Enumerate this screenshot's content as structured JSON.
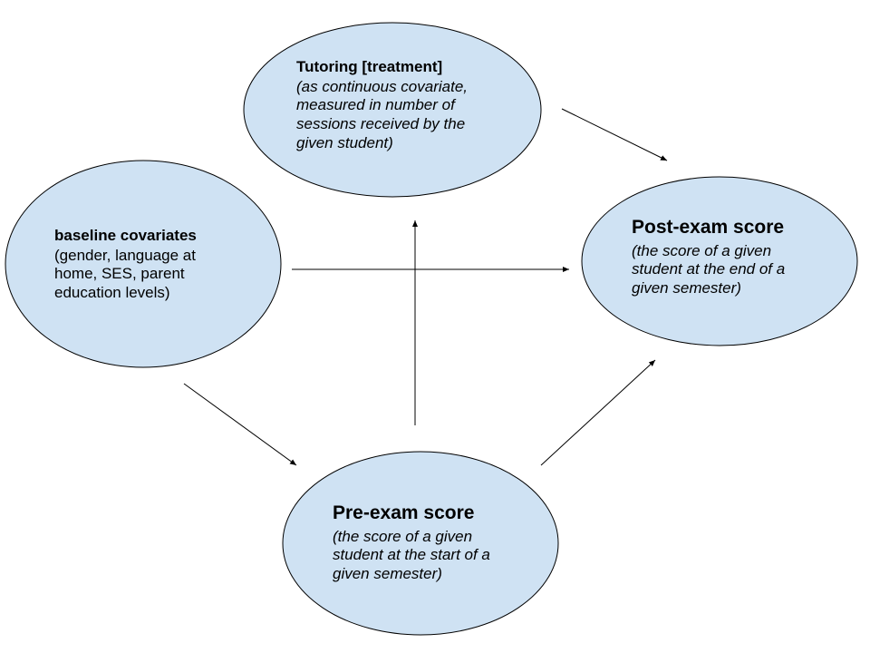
{
  "diagram": {
    "colors": {
      "node_fill": "#cfe2f3",
      "node_stroke": "#000000",
      "edge_stroke": "#000000"
    },
    "nodes": {
      "tutoring": {
        "title": "Tutoring [treatment]",
        "description": "(as continuous covariate,\nmeasured in number of\nsessions received by the\ngiven student)"
      },
      "baseline": {
        "title": "baseline covariates",
        "description": "(gender, language at\nhome, SES, parent\neducation levels)"
      },
      "post_exam": {
        "title": "Post-exam score",
        "description": "(the score of a given\nstudent at the end of a\ngiven semester)"
      },
      "pre_exam": {
        "title": "Pre-exam score",
        "description": "(the score of a given\nstudent at the start of a\ngiven semester)"
      }
    },
    "edges": [
      {
        "from": "tutoring",
        "to": "post_exam"
      },
      {
        "from": "baseline",
        "to": "post_exam"
      },
      {
        "from": "baseline",
        "to": "pre_exam"
      },
      {
        "from": "pre_exam",
        "to": "tutoring"
      },
      {
        "from": "pre_exam",
        "to": "post_exam"
      }
    ]
  }
}
